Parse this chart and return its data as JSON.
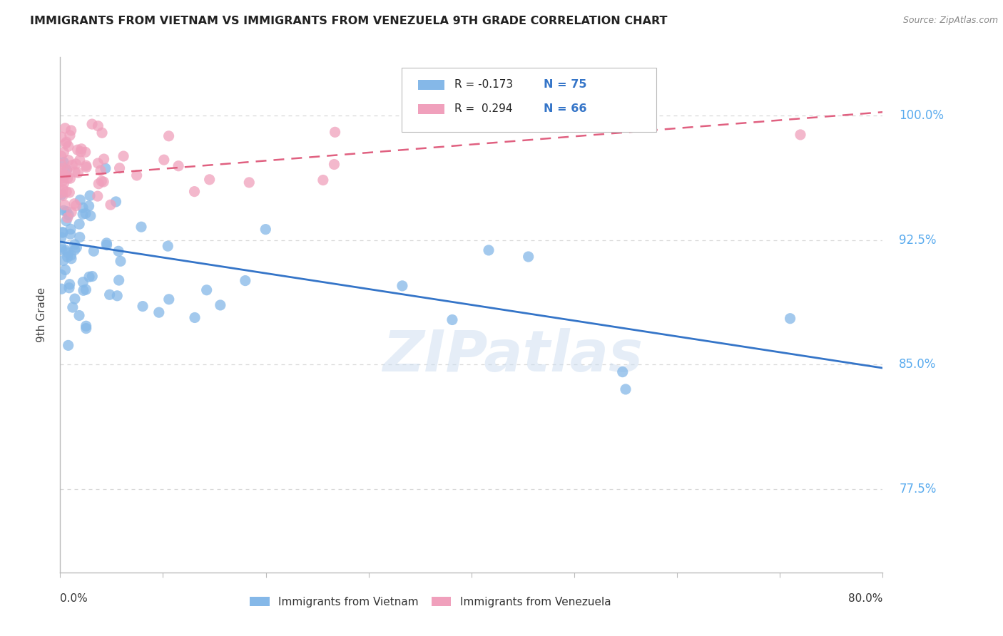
{
  "title": "IMMIGRANTS FROM VIETNAM VS IMMIGRANTS FROM VENEZUELA 9TH GRADE CORRELATION CHART",
  "source": "Source: ZipAtlas.com",
  "ylabel": "9th Grade",
  "xlim": [
    0.0,
    0.8
  ],
  "ylim": [
    0.725,
    1.035
  ],
  "ytick_positions": [
    0.775,
    0.85,
    0.925,
    1.0
  ],
  "ytick_labels": [
    "77.5%",
    "85.0%",
    "92.5%",
    "100.0%"
  ],
  "watermark": "ZIPatlas",
  "color_vietnam": "#85b8e8",
  "color_venezuela": "#f0a0bc",
  "line_color_vietnam": "#3575c8",
  "line_color_venezuela": "#e06080",
  "viet_line_y0": 0.924,
  "viet_line_y1": 0.848,
  "vene_line_y0": 0.963,
  "vene_line_y1": 1.002,
  "background_color": "#ffffff",
  "grid_color": "#d8d8d8",
  "ytick_color": "#5aabee",
  "title_color": "#222222",
  "source_color": "#888888"
}
